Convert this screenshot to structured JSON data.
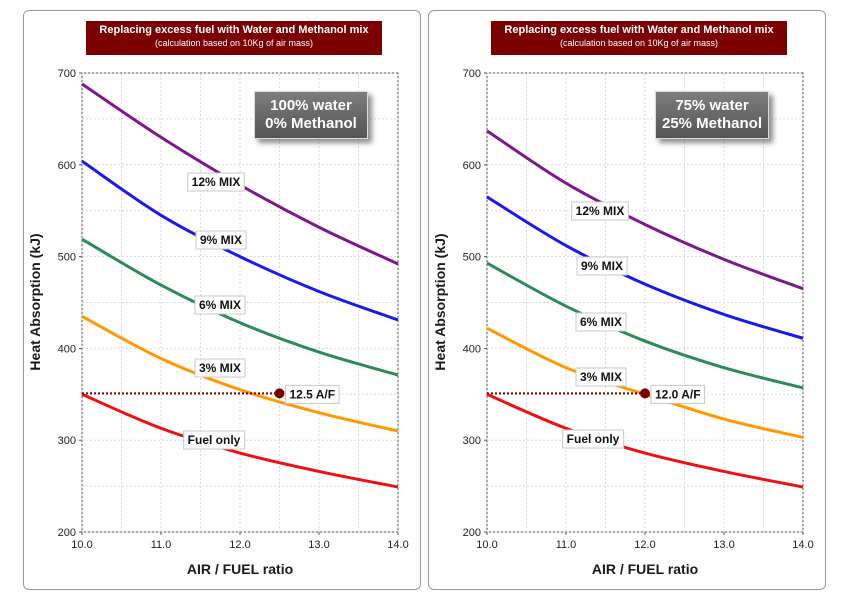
{
  "chart_data": [
    {
      "type": "line",
      "title": "Replacing excess fuel with Water and Methanol mix",
      "subtitle": "(calculation based on 10Kg of air mass)",
      "xlabel": "AIR / FUEL ratio",
      "ylabel": "Heat Absorption (kJ)",
      "xlim": [
        10,
        14
      ],
      "ylim": [
        200,
        700
      ],
      "xticks": [
        "10.0",
        "11.0",
        "12.0",
        "13.0",
        "14.0"
      ],
      "yticks": [
        "200",
        "300",
        "400",
        "500",
        "600",
        "700"
      ],
      "grid": true,
      "mix_label": [
        "100% water",
        "0% Methanol"
      ],
      "series": [
        {
          "name": "12% MIX",
          "color": "#7b1a8a",
          "x": [
            10,
            11,
            12,
            13,
            14
          ],
          "y": [
            688,
            630,
            578,
            532,
            492
          ]
        },
        {
          "name": "9% MIX",
          "color": "#1a1aee",
          "x": [
            10,
            11,
            12,
            13,
            14
          ],
          "y": [
            604,
            545,
            500,
            462,
            431
          ]
        },
        {
          "name": "6% MIX",
          "color": "#2e8b57",
          "x": [
            10,
            11,
            12,
            13,
            14
          ],
          "y": [
            519,
            469,
            428,
            396,
            371
          ]
        },
        {
          "name": "3% MIX",
          "color": "#ff9900",
          "x": [
            10,
            11,
            12,
            13,
            14
          ],
          "y": [
            435,
            389,
            355,
            330,
            310
          ]
        },
        {
          "name": "Fuel only",
          "color": "#ee1111",
          "x": [
            10,
            11,
            12,
            13,
            14
          ],
          "y": [
            350,
            313,
            286,
            266,
            249
          ]
        }
      ],
      "marker": {
        "x": 12.5,
        "y": 351,
        "label": "12.5 A/F",
        "color": "#7a0000"
      }
    },
    {
      "type": "line",
      "title": "Replacing excess fuel with Water and Methanol mix",
      "subtitle": "(calculation based on 10Kg of air mass)",
      "xlabel": "AIR / FUEL ratio",
      "ylabel": "Heat Absorption (kJ)",
      "xlim": [
        10,
        14
      ],
      "ylim": [
        200,
        700
      ],
      "xticks": [
        "10.0",
        "11.0",
        "12.0",
        "13.0",
        "14.0"
      ],
      "yticks": [
        "200",
        "300",
        "400",
        "500",
        "600",
        "700"
      ],
      "grid": true,
      "mix_label": [
        "75% water",
        "25% Methanol"
      ],
      "series": [
        {
          "name": "12% MIX",
          "color": "#7b1a8a",
          "x": [
            10,
            11,
            12,
            13,
            14
          ],
          "y": [
            637,
            580,
            535,
            497,
            465
          ]
        },
        {
          "name": "9% MIX",
          "color": "#1a1aee",
          "x": [
            10,
            11,
            12,
            13,
            14
          ],
          "y": [
            565,
            512,
            470,
            437,
            411
          ]
        },
        {
          "name": "6% MIX",
          "color": "#2e8b57",
          "x": [
            10,
            11,
            12,
            13,
            14
          ],
          "y": [
            493,
            446,
            408,
            379,
            357
          ]
        },
        {
          "name": "3% MIX",
          "color": "#ff9900",
          "x": [
            10,
            11,
            12,
            13,
            14
          ],
          "y": [
            422,
            379,
            350,
            323,
            303
          ]
        },
        {
          "name": "Fuel only",
          "color": "#ee1111",
          "x": [
            10,
            11,
            12,
            13,
            14
          ],
          "y": [
            350,
            313,
            286,
            266,
            249
          ]
        }
      ],
      "marker": {
        "x": 12.0,
        "y": 351,
        "label": "12.0 A/F",
        "color": "#7a0000"
      }
    }
  ]
}
